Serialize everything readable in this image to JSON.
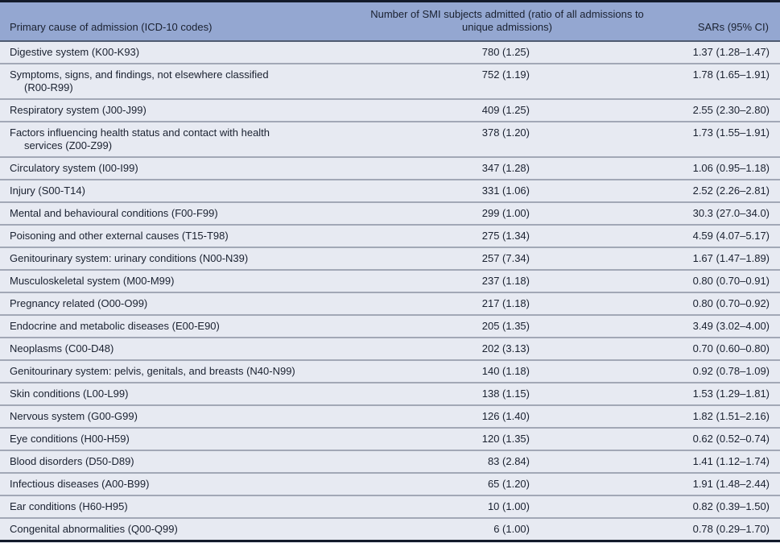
{
  "colors": {
    "header_background": "#94A7D1",
    "row_background": "#E7EAF2",
    "outer_border": "#131A2A",
    "header_divider": "#4F5B71",
    "row_divider": "#A2A8B6",
    "text": "#1A2130"
  },
  "table": {
    "columns": [
      {
        "id": "cause",
        "label": "Primary cause of admission (ICD-10 codes)"
      },
      {
        "id": "admitted",
        "label": "Number of SMI subjects admitted (ratio of all admissions to unique admissions)",
        "label_lines": [
          "Number of SMI subjects admitted (ratio of all admissions to",
          "unique admissions)"
        ]
      },
      {
        "id": "sar",
        "label": "SARs (95% CI)"
      }
    ],
    "rows": [
      {
        "cause_lines": [
          "Digestive system (K00-K93)"
        ],
        "admitted": "780 (1.25)",
        "sar": "1.37 (1.28–1.47)"
      },
      {
        "cause_lines": [
          "Symptoms, signs, and findings, not elsewhere classified",
          "(R00-R99)"
        ],
        "admitted": "752 (1.19)",
        "sar": "1.78 (1.65–1.91)"
      },
      {
        "cause_lines": [
          "Respiratory system (J00-J99)"
        ],
        "admitted": "409 (1.25)",
        "sar": "2.55 (2.30–2.80)"
      },
      {
        "cause_lines": [
          "Factors influencing health status and contact with health",
          "services (Z00-Z99)"
        ],
        "admitted": "378 (1.20)",
        "sar": "1.73 (1.55–1.91)"
      },
      {
        "cause_lines": [
          "Circulatory system (I00-I99)"
        ],
        "admitted": "347 (1.28)",
        "sar": "1.06 (0.95–1.18)"
      },
      {
        "cause_lines": [
          "Injury (S00-T14)"
        ],
        "admitted": "331 (1.06)",
        "sar": "2.52 (2.26–2.81)"
      },
      {
        "cause_lines": [
          "Mental and behavioural conditions (F00-F99)"
        ],
        "admitted": "299 (1.00)",
        "sar": "30.3 (27.0–34.0)"
      },
      {
        "cause_lines": [
          "Poisoning and other external causes (T15-T98)"
        ],
        "admitted": "275 (1.34)",
        "sar": "4.59 (4.07–5.17)"
      },
      {
        "cause_lines": [
          "Genitourinary system: urinary conditions (N00-N39)"
        ],
        "admitted": "257 (7.34)",
        "sar": "1.67 (1.47–1.89)"
      },
      {
        "cause_lines": [
          "Musculoskeletal system (M00-M99)"
        ],
        "admitted": "237 (1.18)",
        "sar": "0.80 (0.70–0.91)"
      },
      {
        "cause_lines": [
          "Pregnancy related (O00-O99)"
        ],
        "admitted": "217 (1.18)",
        "sar": "0.80 (0.70–0.92)"
      },
      {
        "cause_lines": [
          "Endocrine and metabolic diseases (E00-E90)"
        ],
        "admitted": "205 (1.35)",
        "sar": "3.49 (3.02–4.00)"
      },
      {
        "cause_lines": [
          "Neoplasms (C00-D48)"
        ],
        "admitted": "202 (3.13)",
        "sar": "0.70 (0.60–0.80)"
      },
      {
        "cause_lines": [
          "Genitourinary system: pelvis, genitals, and breasts (N40-N99)"
        ],
        "admitted": "140 (1.18)",
        "sar": "0.92 (0.78–1.09)"
      },
      {
        "cause_lines": [
          "Skin conditions (L00-L99)"
        ],
        "admitted": "138 (1.15)",
        "sar": "1.53 (1.29–1.81)"
      },
      {
        "cause_lines": [
          "Nervous system (G00-G99)"
        ],
        "admitted": "126 (1.40)",
        "sar": "1.82 (1.51–2.16)"
      },
      {
        "cause_lines": [
          "Eye conditions (H00-H59)"
        ],
        "admitted": "120 (1.35)",
        "sar": "0.62 (0.52–0.74)"
      },
      {
        "cause_lines": [
          "Blood disorders (D50-D89)"
        ],
        "admitted": "83 (2.84)",
        "sar": "1.41 (1.12–1.74)"
      },
      {
        "cause_lines": [
          "Infectious diseases (A00-B99)"
        ],
        "admitted": "65 (1.20)",
        "sar": "1.91 (1.48–2.44)"
      },
      {
        "cause_lines": [
          "Ear conditions (H60-H95)"
        ],
        "admitted": "10 (1.00)",
        "sar": "0.82 (0.39–1.50)"
      },
      {
        "cause_lines": [
          "Congenital abnormalities (Q00-Q99)"
        ],
        "admitted": "6 (1.00)",
        "sar": "0.78 (0.29–1.70)"
      }
    ]
  }
}
